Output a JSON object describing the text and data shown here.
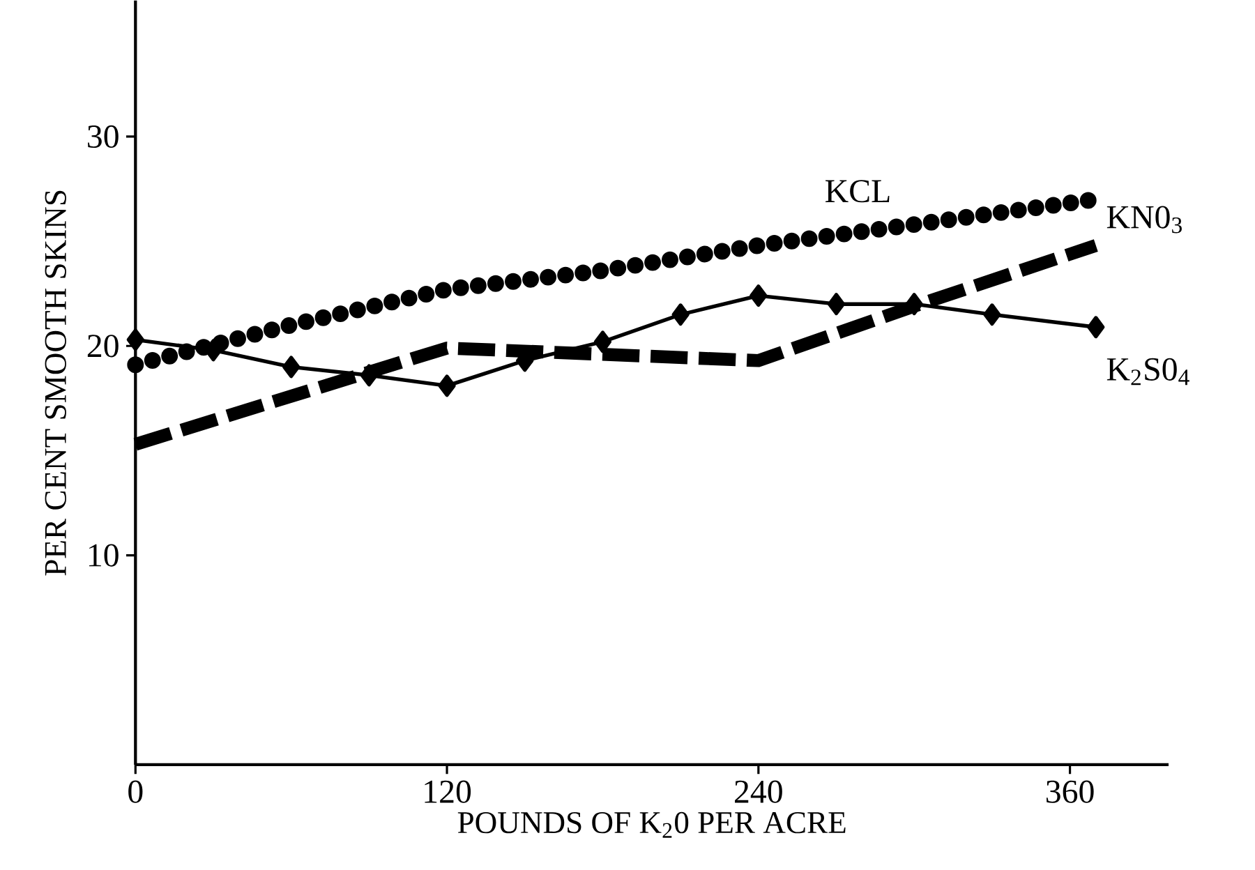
{
  "chart_data": {
    "type": "line",
    "xlabel": "POUNDS OF K$_{2}$0 PER ACRE",
    "ylabel": "PER CENT SMOOTH SKINS",
    "xlim": [
      0,
      398
    ],
    "ylim": [
      0,
      36.5
    ],
    "xticks": [
      0,
      120,
      240,
      360
    ],
    "yticks": [
      10,
      20,
      30
    ],
    "grid": false,
    "series": [
      {
        "name": "KCL",
        "color": "#000000",
        "line_style": "dotted",
        "marker": "none",
        "x": [
          0,
          60,
          120,
          180,
          240,
          300,
          370
        ],
        "values": [
          19.1,
          21.0,
          22.7,
          23.6,
          24.8,
          25.8,
          27.0
        ]
      },
      {
        "name": "KN0$_{3}$",
        "color": "#000000",
        "line_style": "dashed",
        "marker": "none",
        "x": [
          0,
          120,
          240,
          300,
          370
        ],
        "values": [
          15.3,
          19.9,
          19.3,
          21.9,
          24.8
        ]
      },
      {
        "name": "K$_{2}$S0$_{4}$",
        "color": "#000000",
        "line_style": "solid",
        "marker": "diamond",
        "x": [
          0,
          30,
          60,
          90,
          120,
          150,
          180,
          210,
          240,
          270,
          300,
          330,
          370
        ],
        "values": [
          20.3,
          19.8,
          19.0,
          18.6,
          18.1,
          19.3,
          20.2,
          21.5,
          22.4,
          22.0,
          22.0,
          21.5,
          20.9
        ]
      }
    ]
  }
}
